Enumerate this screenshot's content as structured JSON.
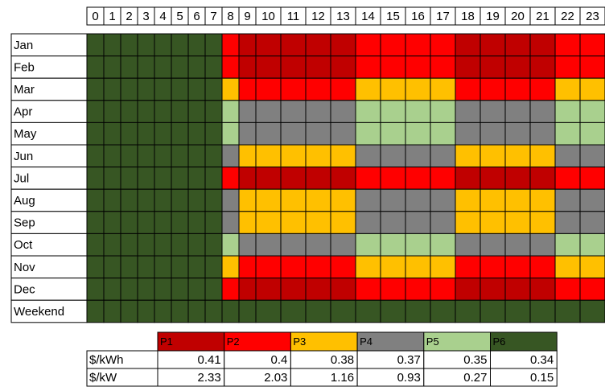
{
  "grid": {
    "hours": [
      0,
      1,
      2,
      3,
      4,
      5,
      6,
      7,
      8,
      9,
      10,
      11,
      12,
      13,
      14,
      15,
      16,
      17,
      18,
      19,
      20,
      21,
      22,
      23
    ],
    "rows": [
      {
        "label": "Jan",
        "periods": [
          "P6",
          "P6",
          "P6",
          "P6",
          "P6",
          "P6",
          "P6",
          "P6",
          "P2",
          "P1",
          "P1",
          "P1",
          "P1",
          "P1",
          "P2",
          "P2",
          "P2",
          "P2",
          "P1",
          "P1",
          "P1",
          "P1",
          "P2",
          "P2"
        ]
      },
      {
        "label": "Feb",
        "periods": [
          "P6",
          "P6",
          "P6",
          "P6",
          "P6",
          "P6",
          "P6",
          "P6",
          "P2",
          "P1",
          "P1",
          "P1",
          "P1",
          "P1",
          "P2",
          "P2",
          "P2",
          "P2",
          "P1",
          "P1",
          "P1",
          "P1",
          "P2",
          "P2"
        ]
      },
      {
        "label": "Mar",
        "periods": [
          "P6",
          "P6",
          "P6",
          "P6",
          "P6",
          "P6",
          "P6",
          "P6",
          "P3",
          "P2",
          "P2",
          "P2",
          "P2",
          "P2",
          "P3",
          "P3",
          "P3",
          "P3",
          "P2",
          "P2",
          "P2",
          "P2",
          "P3",
          "P3"
        ]
      },
      {
        "label": "Apr",
        "periods": [
          "P6",
          "P6",
          "P6",
          "P6",
          "P6",
          "P6",
          "P6",
          "P6",
          "P5",
          "P4",
          "P4",
          "P4",
          "P4",
          "P4",
          "P5",
          "P5",
          "P5",
          "P5",
          "P4",
          "P4",
          "P4",
          "P4",
          "P5",
          "P5"
        ]
      },
      {
        "label": "May",
        "periods": [
          "P6",
          "P6",
          "P6",
          "P6",
          "P6",
          "P6",
          "P6",
          "P6",
          "P5",
          "P4",
          "P4",
          "P4",
          "P4",
          "P4",
          "P5",
          "P5",
          "P5",
          "P5",
          "P4",
          "P4",
          "P4",
          "P4",
          "P5",
          "P5"
        ]
      },
      {
        "label": "Jun",
        "periods": [
          "P6",
          "P6",
          "P6",
          "P6",
          "P6",
          "P6",
          "P6",
          "P6",
          "P4",
          "P3",
          "P3",
          "P3",
          "P3",
          "P3",
          "P4",
          "P4",
          "P4",
          "P4",
          "P3",
          "P3",
          "P3",
          "P3",
          "P4",
          "P4"
        ]
      },
      {
        "label": "Jul",
        "periods": [
          "P6",
          "P6",
          "P6",
          "P6",
          "P6",
          "P6",
          "P6",
          "P6",
          "P2",
          "P1",
          "P1",
          "P1",
          "P1",
          "P1",
          "P2",
          "P2",
          "P2",
          "P2",
          "P1",
          "P1",
          "P1",
          "P1",
          "P2",
          "P2"
        ]
      },
      {
        "label": "Aug",
        "periods": [
          "P6",
          "P6",
          "P6",
          "P6",
          "P6",
          "P6",
          "P6",
          "P6",
          "P4",
          "P3",
          "P3",
          "P3",
          "P3",
          "P3",
          "P4",
          "P4",
          "P4",
          "P4",
          "P3",
          "P3",
          "P3",
          "P3",
          "P4",
          "P4"
        ]
      },
      {
        "label": "Sep",
        "periods": [
          "P6",
          "P6",
          "P6",
          "P6",
          "P6",
          "P6",
          "P6",
          "P6",
          "P4",
          "P3",
          "P3",
          "P3",
          "P3",
          "P3",
          "P4",
          "P4",
          "P4",
          "P4",
          "P3",
          "P3",
          "P3",
          "P3",
          "P4",
          "P4"
        ]
      },
      {
        "label": "Oct",
        "periods": [
          "P6",
          "P6",
          "P6",
          "P6",
          "P6",
          "P6",
          "P6",
          "P6",
          "P5",
          "P4",
          "P4",
          "P4",
          "P4",
          "P4",
          "P5",
          "P5",
          "P5",
          "P5",
          "P4",
          "P4",
          "P4",
          "P4",
          "P5",
          "P5"
        ]
      },
      {
        "label": "Nov",
        "periods": [
          "P6",
          "P6",
          "P6",
          "P6",
          "P6",
          "P6",
          "P6",
          "P6",
          "P3",
          "P2",
          "P2",
          "P2",
          "P2",
          "P2",
          "P3",
          "P3",
          "P3",
          "P3",
          "P2",
          "P2",
          "P2",
          "P2",
          "P3",
          "P3"
        ]
      },
      {
        "label": "Dec",
        "periods": [
          "P6",
          "P6",
          "P6",
          "P6",
          "P6",
          "P6",
          "P6",
          "P6",
          "P2",
          "P1",
          "P1",
          "P1",
          "P1",
          "P1",
          "P2",
          "P2",
          "P2",
          "P2",
          "P1",
          "P1",
          "P1",
          "P1",
          "P2",
          "P2"
        ]
      },
      {
        "label": "Weekend",
        "periods": [
          "P6",
          "P6",
          "P6",
          "P6",
          "P6",
          "P6",
          "P6",
          "P6",
          "P6",
          "P6",
          "P6",
          "P6",
          "P6",
          "P6",
          "P6",
          "P6",
          "P6",
          "P6",
          "P6",
          "P6",
          "P6",
          "P6",
          "P6",
          "P6"
        ]
      }
    ]
  },
  "legend": {
    "row_labels": [
      "$/kWh",
      "$/kW"
    ],
    "periods": [
      {
        "name": "P1",
        "color": "#c00000",
        "kwh": 0.41,
        "kw": 2.33
      },
      {
        "name": "P2",
        "color": "#ff0000",
        "kwh": 0.4,
        "kw": 2.03
      },
      {
        "name": "P3",
        "color": "#ffc000",
        "kwh": 0.38,
        "kw": 1.16
      },
      {
        "name": "P4",
        "color": "#808080",
        "kwh": 0.37,
        "kw": 0.93
      },
      {
        "name": "P5",
        "color": "#a9d08e",
        "kwh": 0.35,
        "kw": 0.27
      },
      {
        "name": "P6",
        "color": "#375623",
        "kwh": 0.34,
        "kw": 0.15
      }
    ]
  }
}
